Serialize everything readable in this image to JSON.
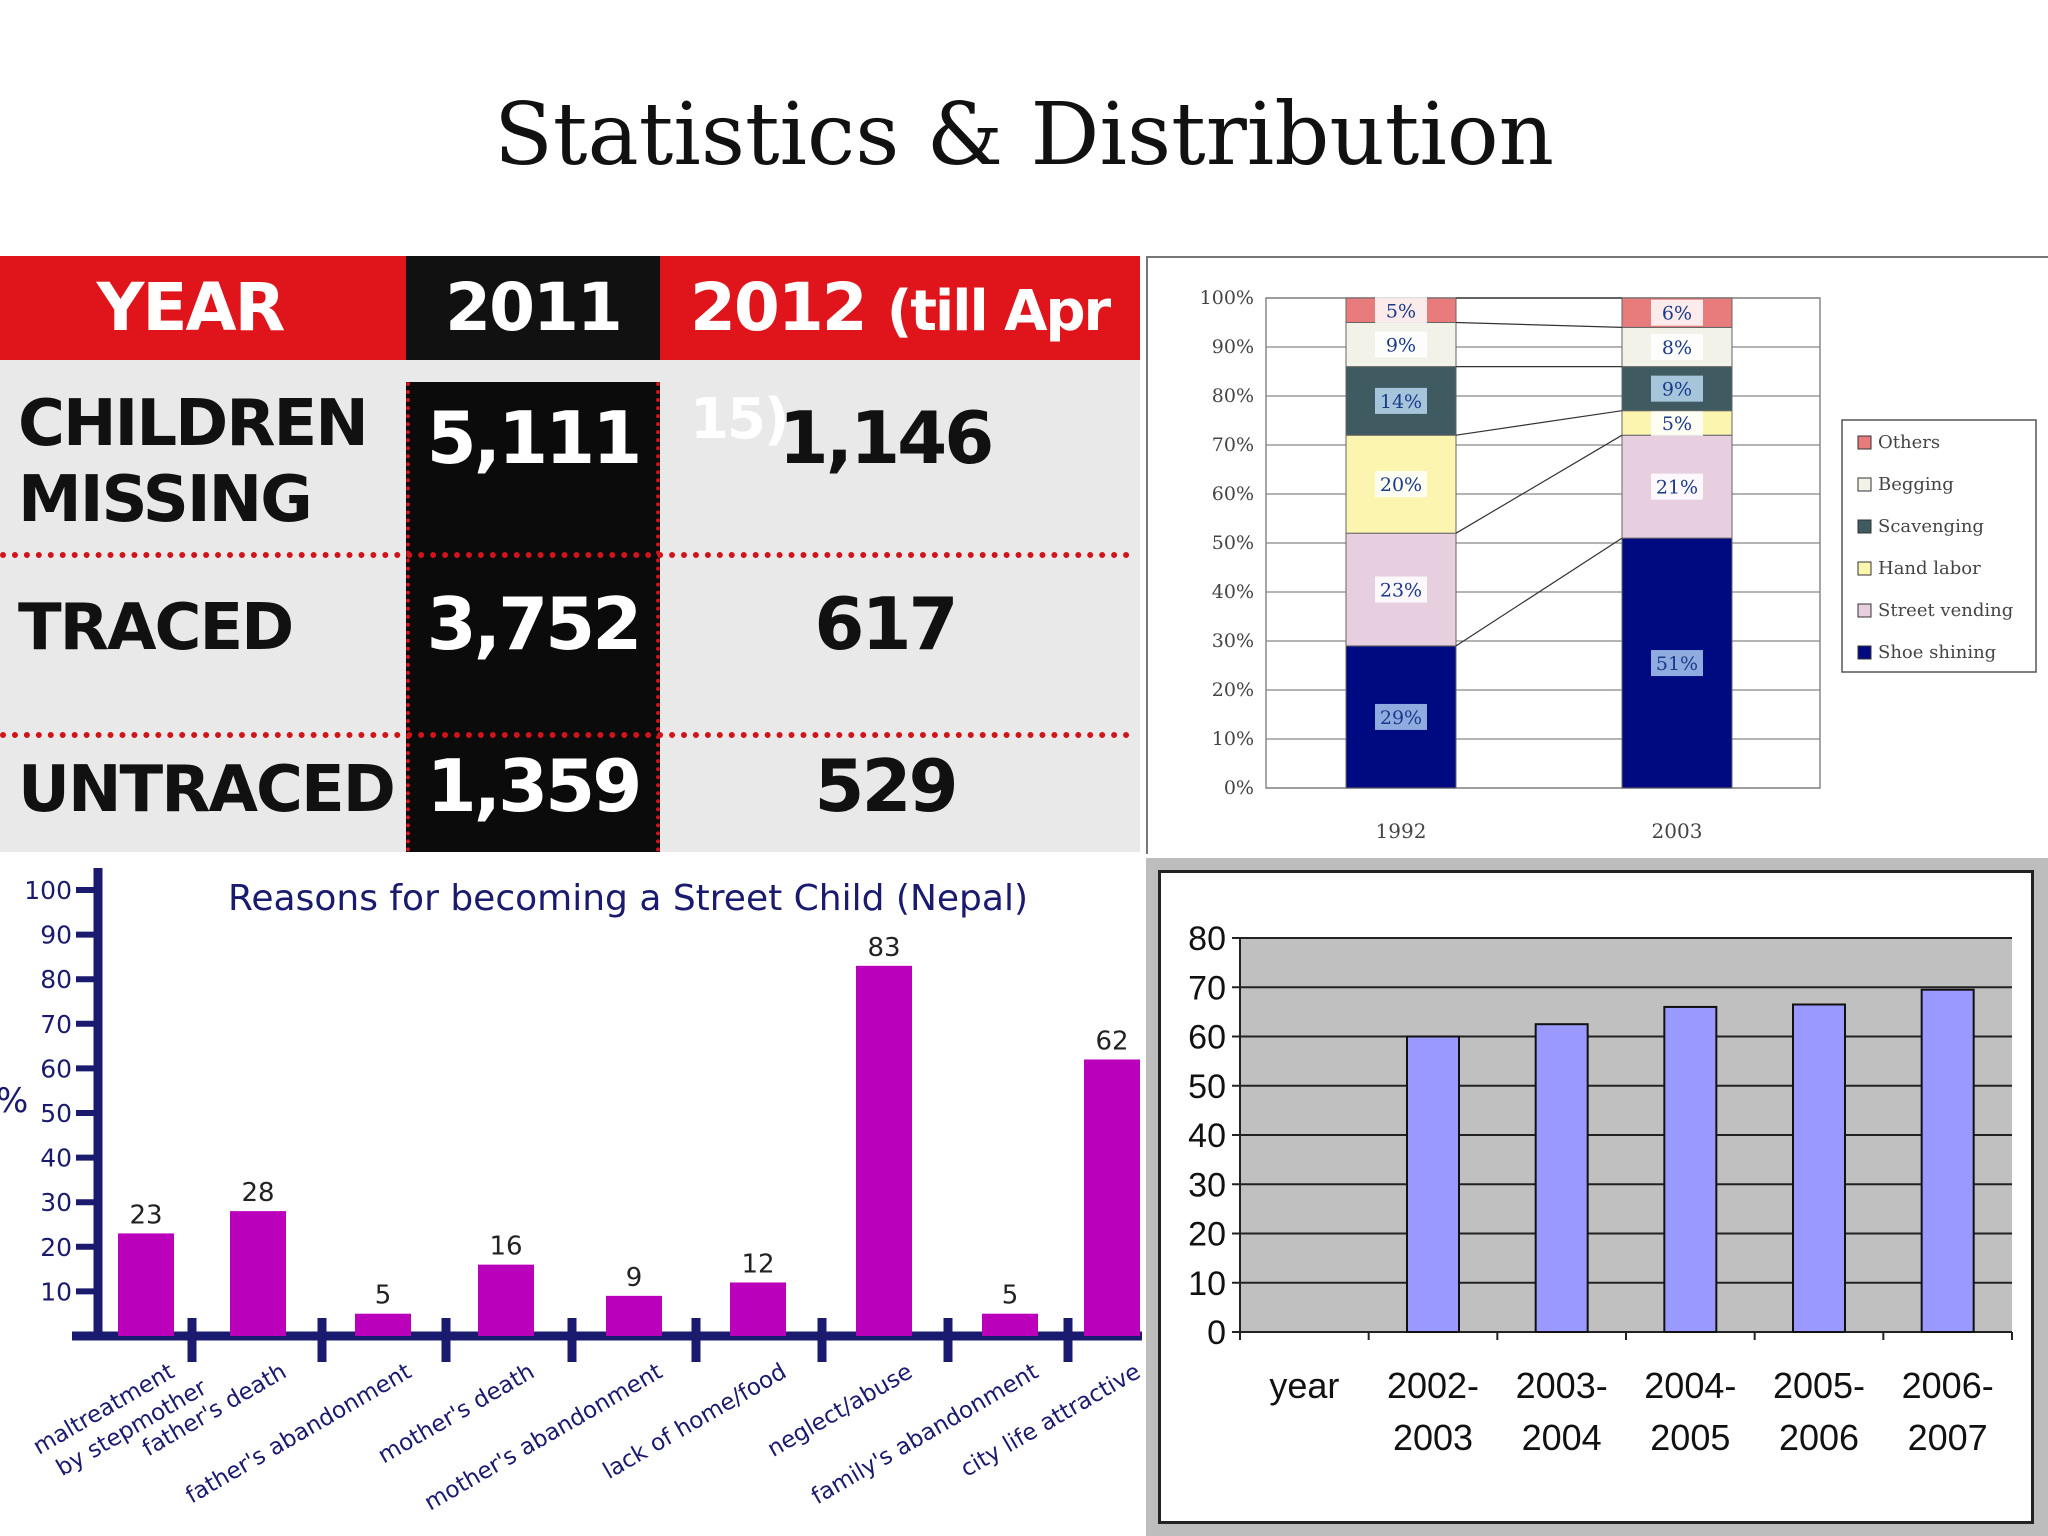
{
  "page": {
    "title": "Statistics & Distribution"
  },
  "table": {
    "headers": {
      "year": "YEAR",
      "y2011": "2011",
      "y2012": "2012",
      "y2012_note": "(till Apr 15)"
    },
    "rows": [
      {
        "label_line1": "CHILDREN",
        "label_line2": "MISSING",
        "v2011": "5,111",
        "v2012": "1,146"
      },
      {
        "label_line1": "TRACED",
        "label_line2": "",
        "v2011": "3,752",
        "v2012": "617"
      },
      {
        "label_line1": "UNTRACED",
        "label_line2": "",
        "v2011": "1,359",
        "v2012": "529"
      }
    ],
    "colors": {
      "header_red": "#e0141b",
      "header_black": "#111111",
      "dots": "#d0141b"
    }
  },
  "chart_data": [
    {
      "type": "table",
      "columns": [
        "YEAR",
        "2011",
        "2012 (till Apr 15)"
      ],
      "rows": [
        [
          "CHILDREN MISSING",
          5111,
          1146
        ],
        [
          "TRACED",
          3752,
          617
        ],
        [
          "UNTRACED",
          1359,
          529
        ]
      ]
    },
    {
      "type": "bar",
      "stacked": true,
      "categories": [
        "1992",
        "2003"
      ],
      "ylim": [
        0,
        100
      ],
      "ytick_labels": [
        "0%",
        "10%",
        "20%",
        "30%",
        "40%",
        "50%",
        "60%",
        "70%",
        "80%",
        "90%",
        "100%"
      ],
      "legend_position": "right",
      "series": [
        {
          "name": "Shoe shining",
          "values": [
            29,
            51
          ],
          "labels": [
            "29%",
            "51%"
          ],
          "color": "#000a80"
        },
        {
          "name": "Street vending",
          "values": [
            23,
            21
          ],
          "labels": [
            "23%",
            "21%"
          ],
          "color": "#e8cfe0"
        },
        {
          "name": "Hand labor",
          "values": [
            20,
            5
          ],
          "labels": [
            "20%",
            "5%"
          ],
          "color": "#fcf5b0"
        },
        {
          "name": "Scavenging",
          "values": [
            14,
            9
          ],
          "labels": [
            "14%",
            "9%"
          ],
          "color": "#3f5a60"
        },
        {
          "name": "Begging",
          "values": [
            9,
            8
          ],
          "labels": [
            "9%",
            "8%"
          ],
          "color": "#f2f2e8"
        },
        {
          "name": "Others",
          "values": [
            5,
            6
          ],
          "labels": [
            "5%",
            "6%"
          ],
          "color": "#e87c7c"
        }
      ],
      "legend_order": [
        "Others",
        "Begging",
        "Scavenging",
        "Hand labor",
        "Street vending",
        "Shoe shining"
      ]
    },
    {
      "type": "bar",
      "title": "Reasons for becoming a Street Child (Nepal)",
      "ylabel": "%",
      "ylim": [
        0,
        100
      ],
      "yticks": [
        10,
        20,
        30,
        40,
        50,
        60,
        70,
        80,
        90,
        100
      ],
      "categories": [
        "maltreatment by stepmother",
        "father's death",
        "father's abandonment",
        "mother's death",
        "mother's abandonment",
        "lack of home/food",
        "neglect/abuse",
        "family's abandonment",
        "city life attractive"
      ],
      "category_lines": [
        [
          "maltreatment",
          "by stepmother"
        ],
        [
          "father's death"
        ],
        [
          "father's abandonment"
        ],
        [
          "mother's death"
        ],
        [
          "mother's abandonment"
        ],
        [
          "lack of home/food"
        ],
        [
          "neglect/abuse"
        ],
        [
          "family's abandonment"
        ],
        [
          "city life attractive"
        ]
      ],
      "values": [
        23,
        28,
        5,
        16,
        9,
        12,
        83,
        5,
        62
      ],
      "bar_color": "#bb00bb",
      "axis_color": "#1a1a6e"
    },
    {
      "type": "bar",
      "categories": [
        "year",
        "2002-2003",
        "2003-2004",
        "2004-2005",
        "2005-2006",
        "2006-2007"
      ],
      "category_lines": [
        [
          "year"
        ],
        [
          "2002-",
          "2003"
        ],
        [
          "2003-",
          "2004"
        ],
        [
          "2004-",
          "2005"
        ],
        [
          "2005-",
          "2006"
        ],
        [
          "2006-",
          "2007"
        ]
      ],
      "values": [
        null,
        60,
        62.5,
        66,
        66.5,
        69.5
      ],
      "ylim": [
        0,
        80
      ],
      "yticks": [
        0,
        10,
        20,
        30,
        40,
        50,
        60,
        70,
        80
      ],
      "grid": true,
      "bar_color": "#9999ff",
      "plot_bg": "#c0c0c0"
    }
  ]
}
